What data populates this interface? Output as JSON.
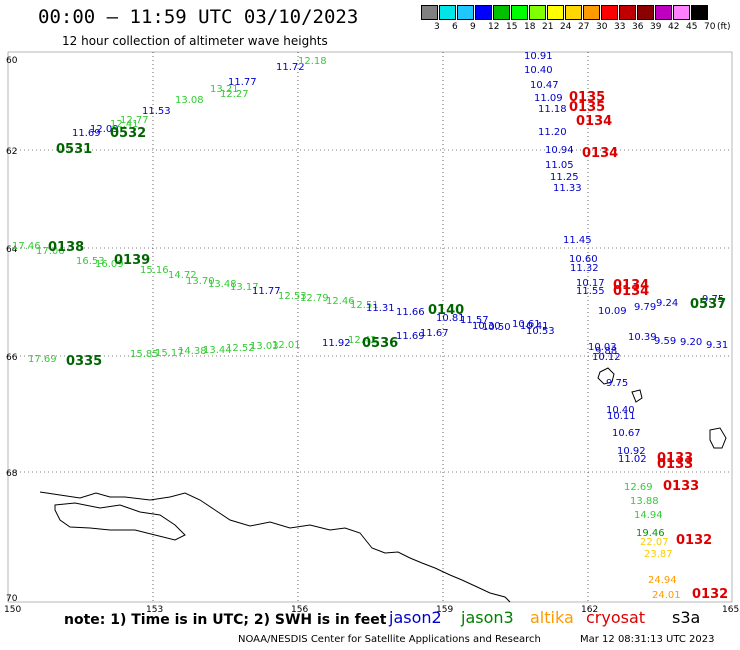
{
  "title": "00:00 – 11:59 UTC 03/10/2023",
  "subtitle": "12 hour collection of altimeter wave heights",
  "legend": {
    "colors": [
      "#808080",
      "#00e5e5",
      "#1ec8ff",
      "#0000ff",
      "#00c000",
      "#00ff00",
      "#7fff00",
      "#ffff00",
      "#ffd700",
      "#ff9900",
      "#ff0000",
      "#c00000",
      "#8b0000",
      "#c000c0",
      "#ff80ff",
      "#000000"
    ],
    "labels": [
      "3",
      "6",
      "9",
      "12",
      "15",
      "18",
      "21",
      "24",
      "27",
      "30",
      "33",
      "36",
      "39",
      "42",
      "45",
      "70"
    ],
    "unit": "(ft)"
  },
  "axes": {
    "lat_labels": [
      "60",
      "62",
      "64",
      "66",
      "68",
      "70"
    ],
    "lon_labels": [
      "150",
      "153",
      "156",
      "159",
      "162",
      "165"
    ]
  },
  "note": "note: 1) Time is in UTC; 2) SWH is in feet",
  "satellites": [
    {
      "name": "jason2",
      "color": "#0000cc"
    },
    {
      "name": "jason3",
      "color": "#008000"
    },
    {
      "name": "altika",
      "color": "#ff9900"
    },
    {
      "name": "cryosat",
      "color": "#dd0000"
    },
    {
      "name": "s3a",
      "color": "#000000"
    }
  ],
  "footer_left": "NOAA/NESDIS Center for Satellite Applications and Research",
  "footer_right": "Mar 12 08:31:13 UTC 2023",
  "passes": [
    {
      "label": "0531",
      "color": "#006400"
    },
    {
      "label": "0532",
      "color": "#006400"
    },
    {
      "label": "0135",
      "color": "#dd0000"
    },
    {
      "label": "0135",
      "color": "#dd0000"
    },
    {
      "label": "0134",
      "color": "#dd0000"
    },
    {
      "label": "0134",
      "color": "#dd0000"
    },
    {
      "label": "0138",
      "color": "#006400"
    },
    {
      "label": "0139",
      "color": "#006400"
    },
    {
      "label": "0134",
      "color": "#dd0000"
    },
    {
      "label": "0134",
      "color": "#dd0000"
    },
    {
      "label": "0140",
      "color": "#006400"
    },
    {
      "label": "0536",
      "color": "#006400"
    },
    {
      "label": "0335",
      "color": "#006400"
    },
    {
      "label": "0537",
      "color": "#006400"
    },
    {
      "label": "0133",
      "color": "#dd0000"
    },
    {
      "label": "0133",
      "color": "#dd0000"
    },
    {
      "label": "0133",
      "color": "#dd0000"
    },
    {
      "label": "0132",
      "color": "#dd0000"
    },
    {
      "label": "0132",
      "color": "#dd0000"
    }
  ],
  "readings": [
    {
      "v": "10.91",
      "c": "#0000cc"
    },
    {
      "v": "10.40",
      "c": "#0000cc"
    },
    {
      "v": "10.47",
      "c": "#0000cc"
    },
    {
      "v": "11.09",
      "c": "#0000cc"
    },
    {
      "v": "11.18",
      "c": "#0000cc"
    },
    {
      "v": "11.20",
      "c": "#0000cc"
    },
    {
      "v": "10.94",
      "c": "#0000cc"
    },
    {
      "v": "11.05",
      "c": "#0000cc"
    },
    {
      "v": "11.25",
      "c": "#0000cc"
    },
    {
      "v": "11.33",
      "c": "#0000cc"
    },
    {
      "v": "11.45",
      "c": "#0000cc"
    },
    {
      "v": "10.60",
      "c": "#0000cc"
    },
    {
      "v": "11.32",
      "c": "#0000cc"
    },
    {
      "v": "10.17",
      "c": "#0000cc"
    },
    {
      "v": "11.55",
      "c": "#0000cc"
    },
    {
      "v": "10.03",
      "c": "#0000cc"
    },
    {
      "v": "10.12",
      "c": "#0000cc"
    },
    {
      "v": "9.75",
      "c": "#0000cc"
    },
    {
      "v": "10.40",
      "c": "#0000cc"
    },
    {
      "v": "10.11",
      "c": "#0000cc"
    },
    {
      "v": "10.67",
      "c": "#0000cc"
    },
    {
      "v": "10.92",
      "c": "#0000cc"
    },
    {
      "v": "11.02",
      "c": "#0000cc"
    },
    {
      "v": "12.69",
      "c": "#33cc33"
    },
    {
      "v": "13.88",
      "c": "#33cc33"
    },
    {
      "v": "14.94",
      "c": "#33cc33"
    },
    {
      "v": "19.46",
      "c": "#009900"
    },
    {
      "v": "22.07",
      "c": "#ffcc00"
    },
    {
      "v": "23.87",
      "c": "#ffcc00"
    },
    {
      "v": "24.94",
      "c": "#ff9900"
    },
    {
      "v": "24.01",
      "c": "#ff9900"
    },
    {
      "v": "11.77",
      "c": "#0000cc"
    },
    {
      "v": "11.72",
      "c": "#0000cc"
    },
    {
      "v": "11.53",
      "c": "#0000cc"
    },
    {
      "v": "12.09",
      "c": "#0000cc"
    },
    {
      "v": "11.69",
      "c": "#0000cc"
    },
    {
      "v": "12.18",
      "c": "#33cc33"
    },
    {
      "v": "12.27",
      "c": "#33cc33"
    },
    {
      "v": "13.21",
      "c": "#33cc33"
    },
    {
      "v": "13.08",
      "c": "#33cc33"
    },
    {
      "v": "12.77",
      "c": "#33cc33"
    },
    {
      "v": "12.41",
      "c": "#33cc33"
    },
    {
      "v": "17.46",
      "c": "#33cc33"
    },
    {
      "v": "17.06",
      "c": "#33cc33"
    },
    {
      "v": "16.53",
      "c": "#33cc33"
    },
    {
      "v": "16.09",
      "c": "#33cc33"
    },
    {
      "v": "15.16",
      "c": "#33cc33"
    },
    {
      "v": "14.72",
      "c": "#33cc33"
    },
    {
      "v": "13.70",
      "c": "#33cc33"
    },
    {
      "v": "13.48",
      "c": "#33cc33"
    },
    {
      "v": "13.17",
      "c": "#33cc33"
    },
    {
      "v": "11.77",
      "c": "#0000cc"
    },
    {
      "v": "12.53",
      "c": "#33cc33"
    },
    {
      "v": "12.79",
      "c": "#33cc33"
    },
    {
      "v": "12.46",
      "c": "#33cc33"
    },
    {
      "v": "12.51",
      "c": "#33cc33"
    },
    {
      "v": "11.31",
      "c": "#0000cc"
    },
    {
      "v": "11.66",
      "c": "#0000cc"
    },
    {
      "v": "10.81",
      "c": "#0000cc"
    },
    {
      "v": "11.57",
      "c": "#0000cc"
    },
    {
      "v": "10.30",
      "c": "#0000cc"
    },
    {
      "v": "10.50",
      "c": "#0000cc"
    },
    {
      "v": "10.61",
      "c": "#0000cc"
    },
    {
      "v": "10.41",
      "c": "#0000cc"
    },
    {
      "v": "10.53",
      "c": "#0000cc"
    },
    {
      "v": "10.09",
      "c": "#0000cc"
    },
    {
      "v": "9.79",
      "c": "#0000cc"
    },
    {
      "v": "9.24",
      "c": "#0000cc"
    },
    {
      "v": "9.75",
      "c": "#0000cc"
    },
    {
      "v": "10.39",
      "c": "#0000cc"
    },
    {
      "v": "9.59",
      "c": "#0000cc"
    },
    {
      "v": "9.20",
      "c": "#0000cc"
    },
    {
      "v": "9.31",
      "c": "#0000cc"
    },
    {
      "v": "17.69",
      "c": "#33cc33"
    },
    {
      "v": "15.85",
      "c": "#33cc33"
    },
    {
      "v": "15.17",
      "c": "#33cc33"
    },
    {
      "v": "14.38",
      "c": "#33cc33"
    },
    {
      "v": "13.44",
      "c": "#33cc33"
    },
    {
      "v": "12.52",
      "c": "#33cc33"
    },
    {
      "v": "13.03",
      "c": "#33cc33"
    },
    {
      "v": "12.01",
      "c": "#33cc33"
    },
    {
      "v": "11.92",
      "c": "#0000cc"
    },
    {
      "v": "12.42",
      "c": "#33cc33"
    },
    {
      "v": "11.69",
      "c": "#0000cc"
    },
    {
      "v": "11.67",
      "c": "#0000cc"
    },
    {
      "v": "9.88",
      "c": "#0000cc"
    }
  ]
}
